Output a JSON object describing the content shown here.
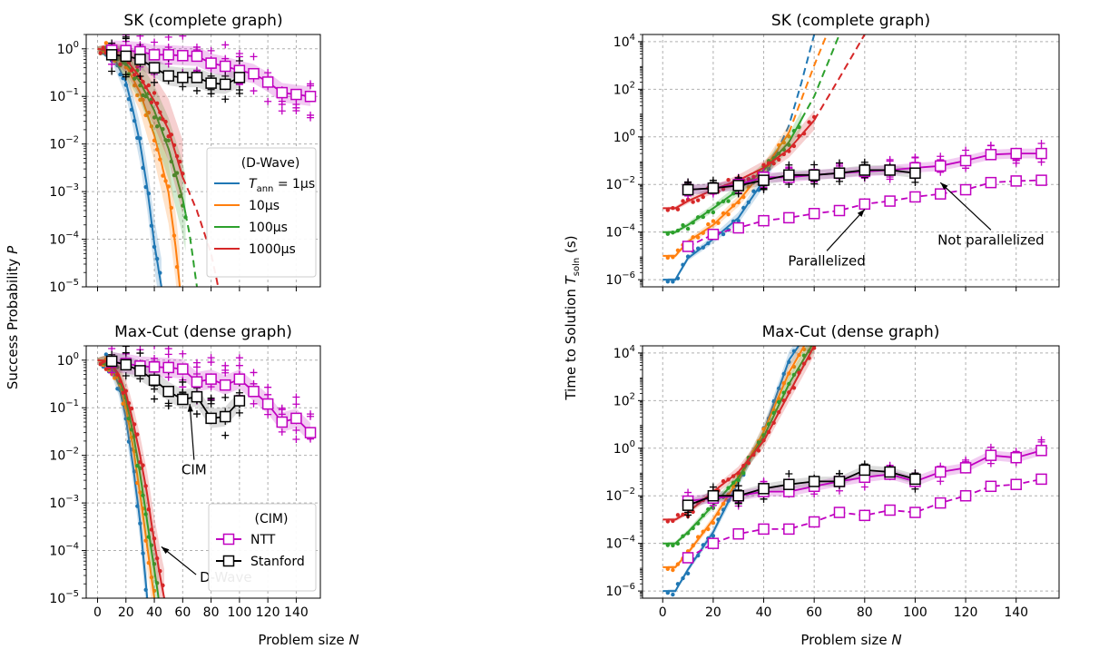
{
  "figure": {
    "ylabel_left": "Success Probability",
    "ylabel_left_var": "P",
    "ylabel_right": "Time to Solution",
    "ylabel_right_var": "T",
    "ylabel_right_sub": "soln",
    "ylabel_right_unit": "(s)",
    "xlabel": "Problem size",
    "xlabel_var": "N"
  },
  "colors": {
    "T1": "#1f77b4",
    "T10": "#ff7f0e",
    "T100": "#2ca02c",
    "T1000": "#d62728",
    "NTT": "#c000c0",
    "Stanford": "#000000"
  },
  "legend_dwave": {
    "title": "(D-Wave)",
    "items": [
      {
        "key": "T1",
        "var": "T",
        "sub": "ann",
        "text": " = 1μs"
      },
      {
        "key": "T10",
        "text": "10μs"
      },
      {
        "key": "T100",
        "text": "100μs"
      },
      {
        "key": "T1000",
        "text": "1000μs"
      }
    ]
  },
  "legend_cim": {
    "title": "(CIM)",
    "items": [
      {
        "key": "NTT",
        "text": "NTT"
      },
      {
        "key": "Stanford",
        "text": "Stanford"
      }
    ]
  },
  "chart_data": [
    {
      "id": "sk-prob",
      "type": "line",
      "title": "SK (complete graph)",
      "yscale": "log",
      "xlim": [
        -8,
        157
      ],
      "ylim": [
        1e-05,
        2
      ],
      "grid": true,
      "xticks": [
        0,
        20,
        40,
        60,
        80,
        100,
        120,
        140
      ],
      "yticks": [
        "10^0",
        "10^-1",
        "10^-2",
        "10^-3",
        "10^-4",
        "10^-5"
      ],
      "xticklabels": false,
      "dwave_fits": [
        {
          "key": "T1",
          "x": [
            0,
            10,
            20,
            25,
            30,
            35,
            40,
            45
          ],
          "y": [
            1,
            0.82,
            0.2,
            0.05,
            0.01,
            0.0012,
            8e-05,
            1e-05
          ]
        },
        {
          "key": "T10",
          "x": [
            0,
            10,
            20,
            30,
            40,
            45,
            50,
            55,
            58
          ],
          "y": [
            1,
            0.85,
            0.45,
            0.12,
            0.015,
            0.004,
            0.00095,
            7e-05,
            1e-05
          ]
        },
        {
          "key": "T100",
          "x": [
            0,
            10,
            20,
            30,
            40,
            50,
            60,
            65,
            70
          ],
          "y": [
            1,
            0.88,
            0.5,
            0.2,
            0.05,
            0.008,
            0.0007,
            0.00012,
            1e-05
          ]
        },
        {
          "key": "T1000",
          "x": [
            0,
            10,
            20,
            30,
            40,
            50,
            60,
            70,
            80,
            85
          ],
          "y": [
            1,
            0.9,
            0.6,
            0.25,
            0.08,
            0.02,
            0.002,
            0.0004,
            5e-05,
            1e-05
          ]
        }
      ],
      "dwave_solid_max_x": [
        45,
        58,
        62,
        60
      ],
      "ntt_x": [
        10,
        20,
        30,
        40,
        50,
        60,
        70,
        80,
        90,
        100,
        110,
        120,
        130,
        140,
        150
      ],
      "ntt_y": [
        0.93,
        0.92,
        0.87,
        0.75,
        0.75,
        0.72,
        0.7,
        0.5,
        0.43,
        0.35,
        0.3,
        0.2,
        0.12,
        0.11,
        0.1
      ],
      "stanford_x": [
        10,
        20,
        30,
        40,
        50,
        60,
        70,
        80,
        90,
        100
      ],
      "stanford_y": [
        0.75,
        0.7,
        0.6,
        0.4,
        0.27,
        0.25,
        0.25,
        0.19,
        0.18,
        0.25
      ]
    },
    {
      "id": "sk-tts",
      "type": "line",
      "title": "SK (complete graph)",
      "yscale": "log",
      "xlim": [
        -8,
        157
      ],
      "ylim": [
        5e-07,
        20000.0
      ],
      "grid": true,
      "xticks": [
        0,
        20,
        40,
        60,
        80,
        100,
        120,
        140
      ],
      "yticks": [
        "10^4",
        "10^2",
        "10^0",
        "10^-2",
        "10^-4",
        "10^-6"
      ],
      "xticklabels": false,
      "dwave_fits": [
        {
          "key": "T1",
          "x": [
            0,
            5,
            10,
            20,
            30,
            40,
            50,
            55,
            60
          ],
          "y": [
            1e-06,
            1e-06,
            8e-06,
            5e-05,
            0.0004,
            0.015,
            3,
            200,
            20000
          ]
        },
        {
          "key": "T10",
          "x": [
            0,
            5,
            10,
            20,
            30,
            40,
            50,
            60,
            65
          ],
          "y": [
            1e-05,
            1e-05,
            4e-05,
            0.0002,
            0.002,
            0.04,
            1.5,
            1000,
            20000
          ]
        },
        {
          "key": "T100",
          "x": [
            0,
            5,
            10,
            20,
            30,
            40,
            50,
            60,
            70
          ],
          "y": [
            0.0001,
            0.0001,
            0.0002,
            0.001,
            0.006,
            0.04,
            0.6,
            50,
            20000
          ]
        },
        {
          "key": "T1000",
          "x": [
            0,
            5,
            10,
            20,
            30,
            40,
            50,
            60,
            70,
            80
          ],
          "y": [
            0.001,
            0.001,
            0.002,
            0.006,
            0.015,
            0.05,
            0.3,
            5,
            300,
            20000
          ]
        }
      ],
      "dwave_solid_max_x": [
        45,
        50,
        55,
        60
      ],
      "ntt_x": [
        10,
        20,
        30,
        40,
        50,
        60,
        70,
        80,
        90,
        100,
        110,
        120,
        130,
        140,
        150
      ],
      "ntt_y": [
        0.006,
        0.007,
        0.01,
        0.02,
        0.02,
        0.025,
        0.03,
        0.035,
        0.04,
        0.05,
        0.06,
        0.1,
        0.18,
        0.2,
        0.2
      ],
      "ntt_par_x": [
        10,
        20,
        30,
        40,
        50,
        60,
        70,
        80,
        90,
        100,
        110,
        120,
        130,
        140,
        150
      ],
      "ntt_par_y": [
        2.5e-05,
        8e-05,
        0.00015,
        0.0003,
        0.0004,
        0.0006,
        0.0008,
        0.0015,
        0.002,
        0.003,
        0.004,
        0.006,
        0.012,
        0.014,
        0.015
      ],
      "stanford_x": [
        10,
        20,
        30,
        40,
        50,
        60,
        70,
        80,
        90,
        100
      ],
      "stanford_y": [
        0.006,
        0.007,
        0.009,
        0.015,
        0.025,
        0.025,
        0.03,
        0.04,
        0.04,
        0.03
      ],
      "annotations": [
        {
          "text": "Parallelized",
          "x": 65,
          "y": 4e-06
        },
        {
          "text": "Not parallelized",
          "x": 130,
          "y": 3e-05
        }
      ]
    },
    {
      "id": "mc-prob",
      "type": "line",
      "title": "Max-Cut (dense graph)",
      "yscale": "log",
      "xlim": [
        -8,
        157
      ],
      "ylim": [
        1e-05,
        2
      ],
      "grid": true,
      "xticks": [
        0,
        20,
        40,
        60,
        80,
        100,
        120,
        140
      ],
      "yticks": [
        "10^0",
        "10^-1",
        "10^-2",
        "10^-3",
        "10^-4",
        "10^-5"
      ],
      "xticklabels": true,
      "dwave_fits": [
        {
          "key": "T1",
          "x": [
            0,
            5,
            10,
            15,
            20,
            25,
            30,
            35
          ],
          "y": [
            1,
            0.95,
            0.7,
            0.3,
            0.06,
            0.006,
            0.0004,
            1e-05
          ]
        },
        {
          "key": "T10",
          "x": [
            0,
            5,
            10,
            15,
            20,
            25,
            30,
            35,
            40
          ],
          "y": [
            1,
            0.96,
            0.75,
            0.4,
            0.1,
            0.015,
            0.0015,
            0.00012,
            1e-05
          ]
        },
        {
          "key": "T100",
          "x": [
            0,
            5,
            10,
            15,
            20,
            25,
            30,
            35,
            40,
            43
          ],
          "y": [
            1,
            0.97,
            0.8,
            0.45,
            0.15,
            0.03,
            0.004,
            0.0004,
            4e-05,
            1e-05
          ]
        },
        {
          "key": "T1000",
          "x": [
            0,
            5,
            10,
            15,
            20,
            25,
            30,
            35,
            40,
            45,
            47
          ],
          "y": [
            1,
            0.97,
            0.82,
            0.5,
            0.2,
            0.05,
            0.01,
            0.0015,
            0.00015,
            2e-05,
            1e-05
          ]
        }
      ],
      "dwave_solid_max_x": [
        35,
        40,
        43,
        47
      ],
      "ntt_x": [
        10,
        20,
        30,
        40,
        50,
        60,
        70,
        80,
        90,
        100,
        110,
        120,
        130,
        140,
        150
      ],
      "ntt_y": [
        0.92,
        0.85,
        0.75,
        0.72,
        0.7,
        0.65,
        0.35,
        0.4,
        0.3,
        0.4,
        0.22,
        0.12,
        0.05,
        0.06,
        0.03
      ],
      "stanford_x": [
        10,
        20,
        30,
        40,
        50,
        60,
        70,
        80,
        90,
        100
      ],
      "stanford_y": [
        0.95,
        0.8,
        0.6,
        0.38,
        0.22,
        0.15,
        0.17,
        0.06,
        0.065,
        0.14
      ],
      "annotations": [
        {
          "text": "CIM",
          "x": 68,
          "y": 0.004
        },
        {
          "text": "D-Wave",
          "x": 72,
          "y": 2.2e-05
        }
      ]
    },
    {
      "id": "mc-tts",
      "type": "line",
      "title": "Max-Cut (dense graph)",
      "yscale": "log",
      "xlim": [
        -8,
        157
      ],
      "ylim": [
        5e-07,
        20000.0
      ],
      "grid": true,
      "xticks": [
        0,
        20,
        40,
        60,
        80,
        100,
        120,
        140
      ],
      "yticks": [
        "10^4",
        "10^2",
        "10^0",
        "10^-2",
        "10^-4",
        "10^-6"
      ],
      "xticklabels": true,
      "dwave_fits": [
        {
          "key": "T1",
          "x": [
            0,
            5,
            10,
            20,
            30,
            40,
            50,
            55
          ],
          "y": [
            1e-06,
            1e-06,
            8e-06,
            0.0003,
            0.04,
            5,
            5000,
            30000
          ]
        },
        {
          "key": "T10",
          "x": [
            0,
            5,
            10,
            20,
            30,
            40,
            50,
            57
          ],
          "y": [
            1e-05,
            1e-05,
            4e-05,
            0.001,
            0.05,
            5,
            1500,
            30000
          ]
        },
        {
          "key": "T100",
          "x": [
            0,
            5,
            10,
            20,
            30,
            40,
            50,
            60
          ],
          "y": [
            0.0001,
            0.0001,
            0.0003,
            0.004,
            0.06,
            3,
            500,
            30000
          ]
        },
        {
          "key": "T1000",
          "x": [
            0,
            5,
            10,
            20,
            30,
            40,
            50,
            60
          ],
          "y": [
            0.001,
            0.001,
            0.002,
            0.015,
            0.1,
            2,
            200,
            20000
          ]
        }
      ],
      "dwave_solid_max_x": [
        60,
        60,
        60,
        60
      ],
      "ntt_x": [
        10,
        20,
        30,
        40,
        50,
        60,
        70,
        80,
        90,
        100,
        110,
        120,
        130,
        140,
        150
      ],
      "ntt_y": [
        0.006,
        0.008,
        0.01,
        0.015,
        0.015,
        0.025,
        0.04,
        0.06,
        0.08,
        0.04,
        0.1,
        0.15,
        0.5,
        0.4,
        0.8
      ],
      "ntt_par_x": [
        10,
        20,
        30,
        40,
        50,
        60,
        70,
        80,
        90,
        100,
        110,
        120,
        130,
        140,
        150
      ],
      "ntt_par_y": [
        2.5e-05,
        0.0001,
        0.00025,
        0.0004,
        0.0004,
        0.0008,
        0.002,
        0.0015,
        0.0025,
        0.002,
        0.005,
        0.01,
        0.025,
        0.03,
        0.05
      ],
      "stanford_x": [
        10,
        20,
        30,
        40,
        50,
        60,
        70,
        80,
        90,
        100
      ],
      "stanford_y": [
        0.004,
        0.01,
        0.01,
        0.02,
        0.03,
        0.04,
        0.04,
        0.12,
        0.1,
        0.05
      ]
    }
  ]
}
